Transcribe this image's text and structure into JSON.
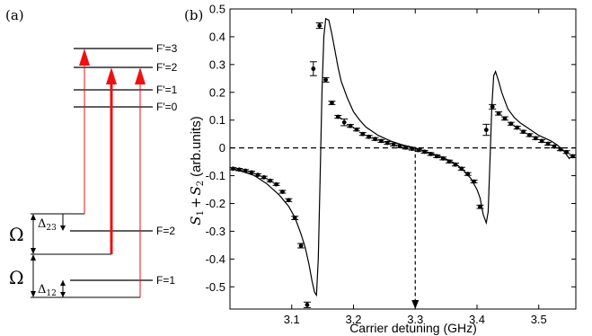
{
  "panels": {
    "a_label": "(a)",
    "b_label": "(b)"
  },
  "level_diagram": {
    "excited_levels": [
      "F'=3",
      "F'=2",
      "F'=1",
      "F'=0"
    ],
    "ground_levels": [
      "F=2",
      "F=1"
    ],
    "omega_symbol": "Ω",
    "delta_23": {
      "symbol": "Δ",
      "subscript": "23"
    },
    "delta_12": {
      "symbol": "Δ",
      "subscript": "12"
    },
    "arrow_color": "#ee1111"
  },
  "chart_data": {
    "type": "line",
    "xlabel": "Carrier detuning (GHz)",
    "ylabel": "(arb.units)",
    "ylabel_math": {
      "base": "S",
      "sub1": "1",
      "plus": "+",
      "sub2": "2"
    },
    "xlim": [
      3.0,
      3.56
    ],
    "ylim": [
      -0.58,
      0.5
    ],
    "xticks": [
      "3.1",
      "3.2",
      "3.3",
      "3.4",
      "3.5"
    ],
    "xtick_values": [
      3.1,
      3.2,
      3.3,
      3.4,
      3.5
    ],
    "yticks": [
      "-0.5",
      "-0.4",
      "-0.3",
      "-0.2",
      "-0.1",
      "0",
      "0.1",
      "0.2",
      "0.3",
      "0.4",
      "0.5"
    ],
    "ytick_values": [
      -0.5,
      -0.4,
      -0.3,
      -0.2,
      -0.1,
      0,
      0.1,
      0.2,
      0.3,
      0.4,
      0.5
    ],
    "zero_line": 0,
    "marker_x": 3.3,
    "grid": false,
    "curve": {
      "x": [
        3.005,
        3.02,
        3.04,
        3.06,
        3.08,
        3.095,
        3.105,
        3.115,
        3.122,
        3.128,
        3.133,
        3.137,
        3.14,
        3.143,
        3.146,
        3.149,
        3.152,
        3.155,
        3.16,
        3.165,
        3.17,
        3.175,
        3.18,
        3.19,
        3.2,
        3.21,
        3.22,
        3.24,
        3.26,
        3.28,
        3.3,
        3.32,
        3.34,
        3.36,
        3.37,
        3.38,
        3.39,
        3.4,
        3.405,
        3.41,
        3.415,
        3.418,
        3.421,
        3.424,
        3.427,
        3.43,
        3.435,
        3.44,
        3.445,
        3.45,
        3.46,
        3.47,
        3.48,
        3.49,
        3.5,
        3.51,
        3.52,
        3.53,
        3.54,
        3.55
      ],
      "y": [
        -0.075,
        -0.085,
        -0.1,
        -0.13,
        -0.17,
        -0.21,
        -0.25,
        -0.31,
        -0.36,
        -0.42,
        -0.48,
        -0.52,
        -0.53,
        -0.4,
        -0.1,
        0.2,
        0.4,
        0.465,
        0.46,
        0.41,
        0.35,
        0.29,
        0.24,
        0.18,
        0.13,
        0.1,
        0.075,
        0.045,
        0.025,
        0.01,
        0.0,
        -0.015,
        -0.03,
        -0.05,
        -0.065,
        -0.085,
        -0.11,
        -0.15,
        -0.18,
        -0.24,
        -0.27,
        -0.23,
        -0.05,
        0.15,
        0.26,
        0.275,
        0.24,
        0.2,
        0.17,
        0.14,
        0.11,
        0.09,
        0.075,
        0.06,
        0.045,
        0.035,
        0.025,
        0.01,
        -0.01,
        -0.04
      ]
    },
    "points": {
      "x": [
        3.005,
        3.015,
        3.025,
        3.035,
        3.045,
        3.055,
        3.065,
        3.075,
        3.085,
        3.095,
        3.105,
        3.115,
        3.125,
        3.135,
        3.145,
        3.155,
        3.165,
        3.175,
        3.185,
        3.195,
        3.205,
        3.215,
        3.225,
        3.235,
        3.245,
        3.255,
        3.265,
        3.275,
        3.285,
        3.295,
        3.305,
        3.315,
        3.325,
        3.335,
        3.345,
        3.355,
        3.365,
        3.375,
        3.385,
        3.395,
        3.405,
        3.415,
        3.425,
        3.435,
        3.445,
        3.455,
        3.465,
        3.475,
        3.485,
        3.495,
        3.505,
        3.515,
        3.525,
        3.535,
        3.545,
        3.555
      ],
      "y": [
        -0.075,
        -0.078,
        -0.082,
        -0.088,
        -0.097,
        -0.106,
        -0.118,
        -0.131,
        -0.158,
        -0.188,
        -0.252,
        -0.352,
        -0.565,
        0.285,
        0.44,
        0.245,
        0.162,
        0.112,
        0.092,
        0.079,
        0.066,
        0.05,
        0.04,
        0.032,
        0.025,
        0.018,
        0.012,
        0.006,
        0.001,
        -0.003,
        -0.008,
        -0.014,
        -0.022,
        -0.03,
        -0.038,
        -0.049,
        -0.06,
        -0.075,
        -0.094,
        -0.121,
        -0.212,
        0.065,
        0.148,
        0.124,
        0.106,
        0.087,
        0.073,
        0.058,
        0.046,
        0.035,
        0.025,
        0.015,
        0.005,
        -0.005,
        -0.015,
        -0.03
      ],
      "errors": [
        0.004,
        0.004,
        0.004,
        0.004,
        0.004,
        0.004,
        0.004,
        0.004,
        0.005,
        0.005,
        0.006,
        0.008,
        0.01,
        0.025,
        0.01,
        0.008,
        0.006,
        0.005,
        0.012,
        0.005,
        0.005,
        0.005,
        0.005,
        0.005,
        0.005,
        0.005,
        0.005,
        0.005,
        0.005,
        0.005,
        0.005,
        0.005,
        0.005,
        0.005,
        0.005,
        0.005,
        0.005,
        0.005,
        0.005,
        0.005,
        0.006,
        0.02,
        0.008,
        0.006,
        0.006,
        0.005,
        0.005,
        0.005,
        0.005,
        0.005,
        0.005,
        0.005,
        0.005,
        0.005,
        0.005,
        0.005
      ]
    }
  }
}
